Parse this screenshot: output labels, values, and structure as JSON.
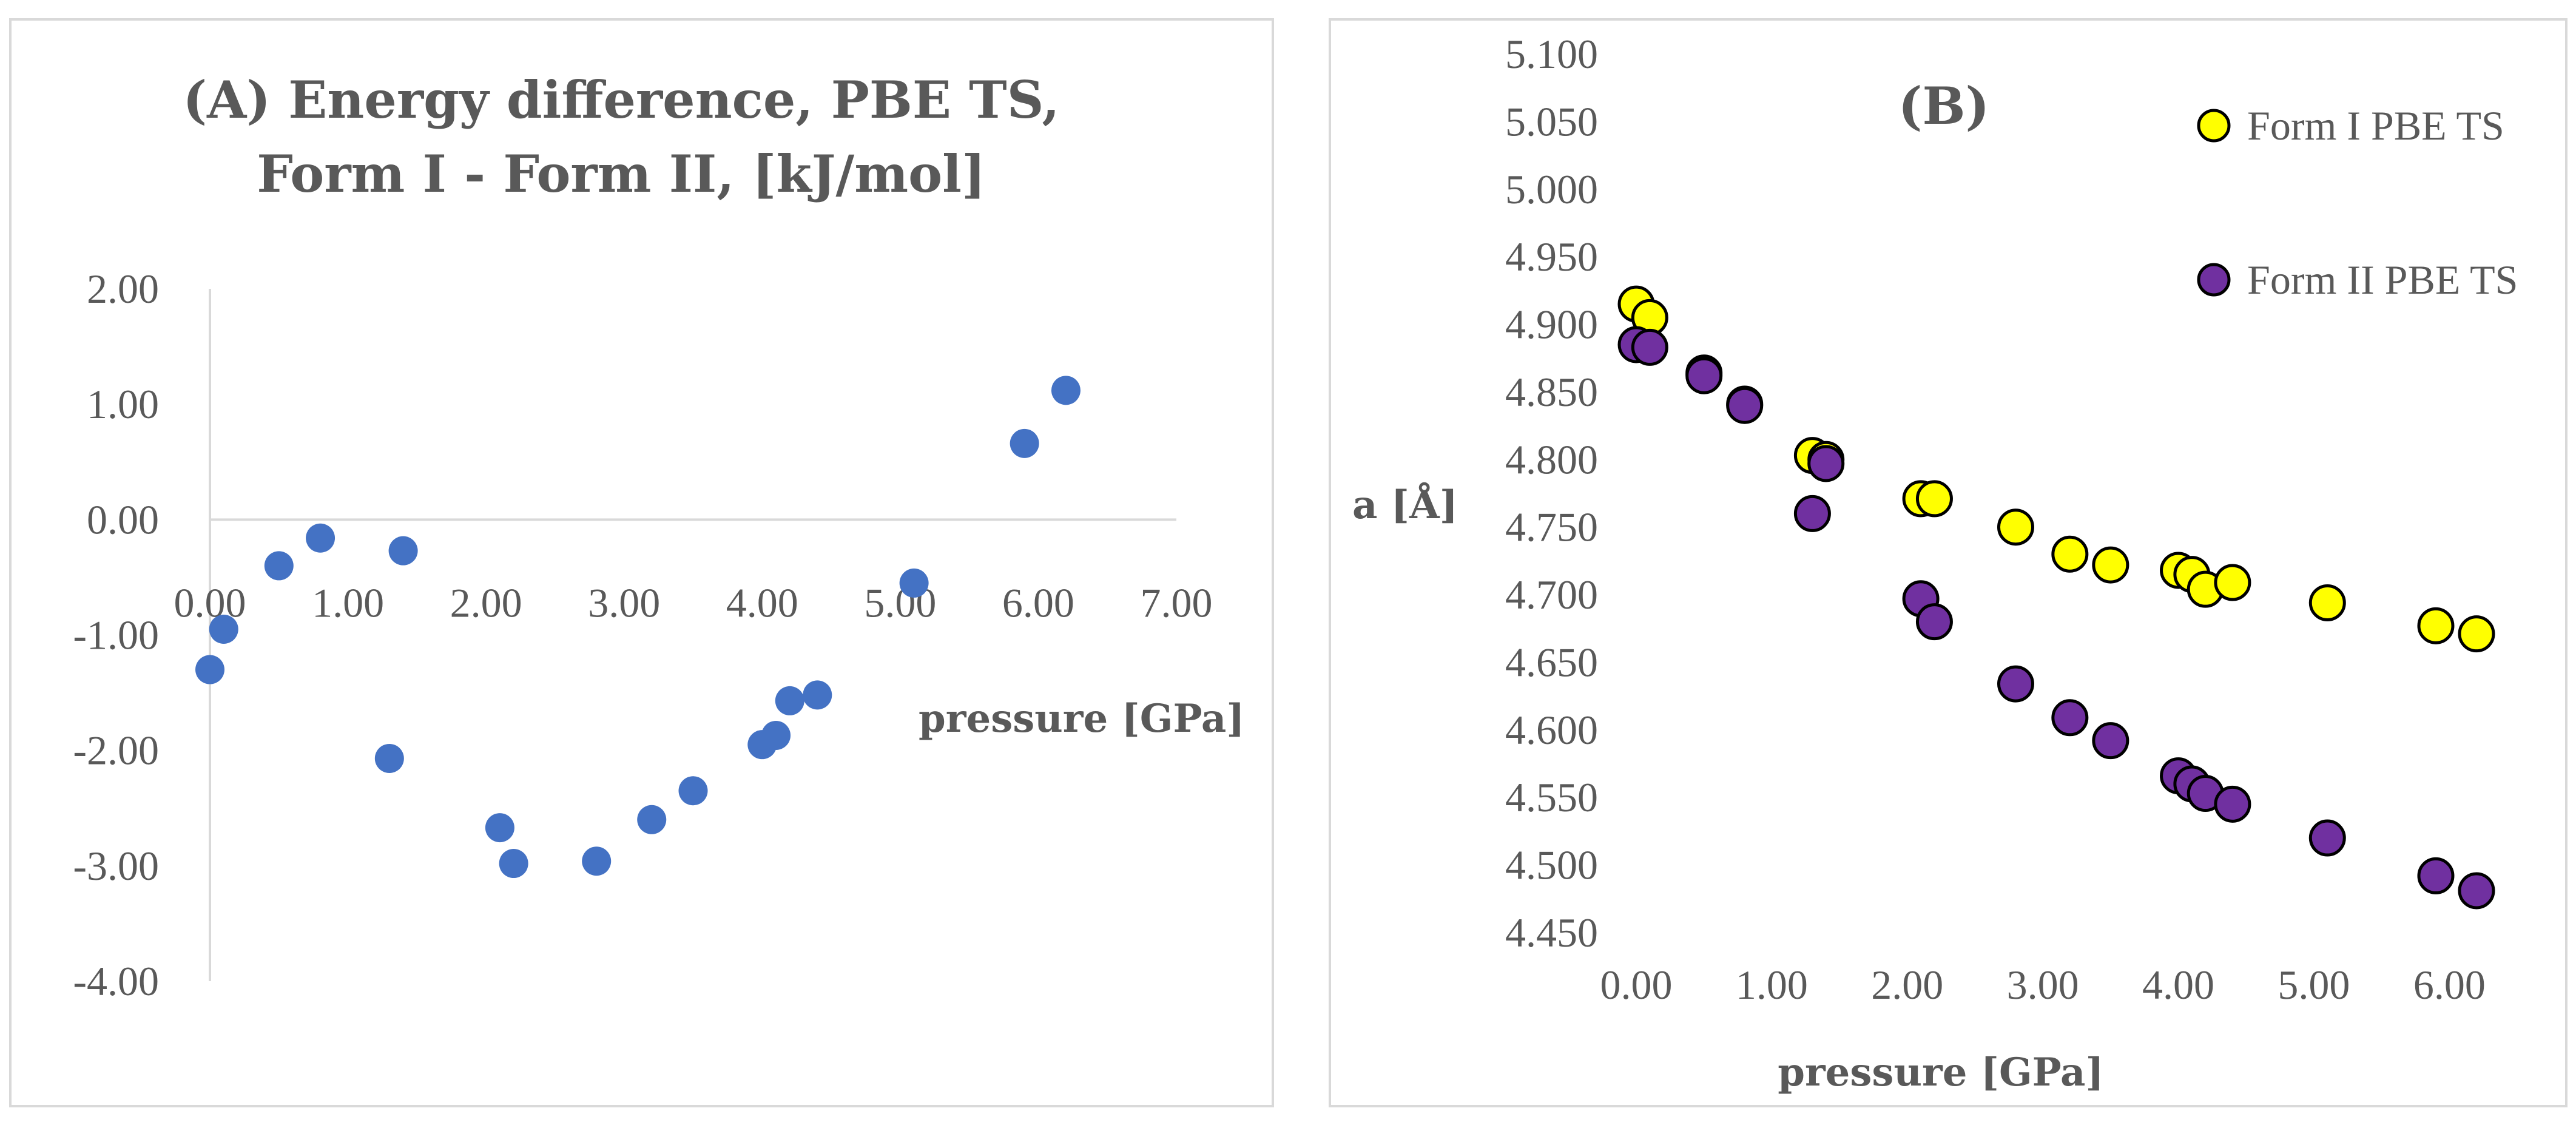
{
  "chart_data": [
    {
      "type": "scatter",
      "panel": "A",
      "title_lines": [
        "(A) Energy difference, PBE TS,",
        "Form I - Form II, [kJ/mol]"
      ],
      "xlabel": "pressure [GPa]",
      "ylabel": "",
      "xlim": [
        0,
        7
      ],
      "ylim": [
        -4,
        2
      ],
      "x_ticks": [
        "0.00",
        "1.00",
        "2.00",
        "3.00",
        "4.00",
        "5.00",
        "6.00",
        "7.00"
      ],
      "y_ticks": [
        "2.00",
        "1.00",
        "0.00",
        "-1.00",
        "-2.00",
        "-3.00",
        "-4.00"
      ],
      "grid": false,
      "marker_color": "#4472c4",
      "series": [
        {
          "name": "Energy difference",
          "x": [
            0.0,
            0.1,
            0.5,
            0.8,
            1.3,
            1.4,
            2.1,
            2.2,
            2.8,
            3.2,
            3.5,
            4.0,
            4.1,
            4.2,
            4.4,
            5.1,
            5.9,
            6.2
          ],
          "y": [
            -1.3,
            -0.95,
            -0.4,
            -0.16,
            -2.07,
            -0.27,
            -2.67,
            -2.98,
            -2.96,
            -2.6,
            -2.35,
            -1.95,
            -1.87,
            -1.57,
            -1.52,
            -0.55,
            0.66,
            1.12
          ]
        }
      ]
    },
    {
      "type": "scatter",
      "panel": "B",
      "title": "(B)",
      "xlabel": "pressure [GPa]",
      "ylabel": "a [Å]",
      "xlim": [
        0,
        6.2
      ],
      "ylim": [
        4.45,
        5.1
      ],
      "x_ticks": [
        "0.00",
        "1.00",
        "2.00",
        "3.00",
        "4.00",
        "5.00",
        "6.00"
      ],
      "y_ticks": [
        "5.100",
        "5.050",
        "5.000",
        "4.950",
        "4.900",
        "4.850",
        "4.800",
        "4.750",
        "4.700",
        "4.650",
        "4.600",
        "4.550",
        "4.500",
        "4.450"
      ],
      "grid": false,
      "legend_position": "top-right",
      "series": [
        {
          "name": "Form I PBE TS",
          "color": "#ffff00",
          "x": [
            0.0,
            0.1,
            0.5,
            0.8,
            1.3,
            1.4,
            2.1,
            2.2,
            2.8,
            3.2,
            3.5,
            4.0,
            4.1,
            4.2,
            4.4,
            5.1,
            5.9,
            6.2
          ],
          "y": [
            4.915,
            4.905,
            4.864,
            4.841,
            4.803,
            4.8,
            4.771,
            4.771,
            4.75,
            4.73,
            4.722,
            4.718,
            4.715,
            4.704,
            4.709,
            4.694,
            4.677,
            4.671
          ]
        },
        {
          "name": "Form II PBE TS",
          "color": "#7030a0",
          "x": [
            0.0,
            0.1,
            0.5,
            0.8,
            1.3,
            1.4,
            2.1,
            2.2,
            2.8,
            3.2,
            3.5,
            4.0,
            4.1,
            4.2,
            4.4,
            5.1,
            5.9,
            6.2
          ],
          "y": [
            4.885,
            4.883,
            4.862,
            4.84,
            4.76,
            4.797,
            4.697,
            4.68,
            4.634,
            4.609,
            4.592,
            4.566,
            4.56,
            4.553,
            4.545,
            4.52,
            4.492,
            4.481
          ]
        }
      ]
    }
  ]
}
